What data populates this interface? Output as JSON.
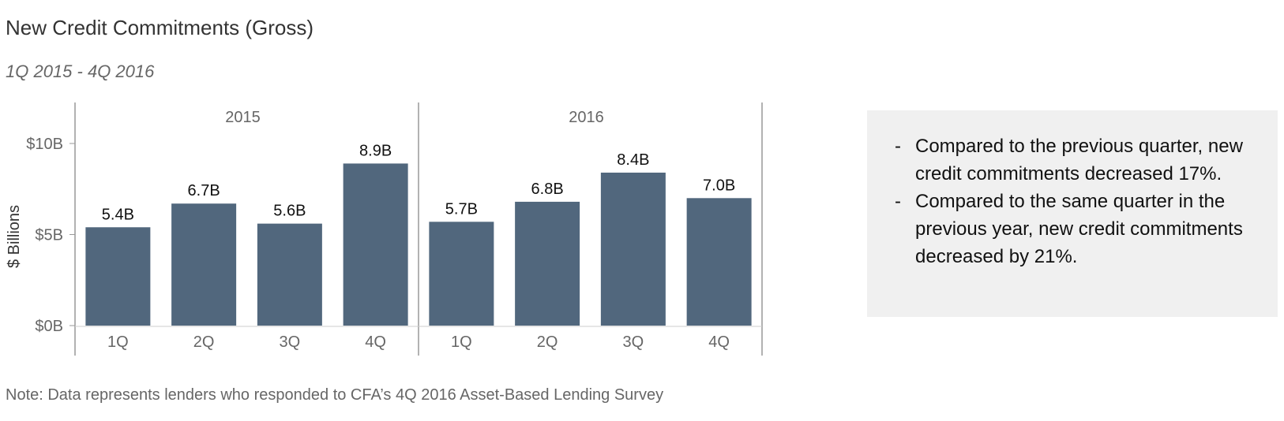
{
  "header": {
    "title": "New Credit Commitments (Gross)",
    "subtitle": "1Q 2015 - 4Q 2016"
  },
  "chart_data": {
    "type": "bar",
    "ylabel": "$ Billions",
    "ylim": [
      0,
      12
    ],
    "yticks": [
      0,
      5,
      10
    ],
    "ytick_labels": [
      "$0B",
      "$5B",
      "$10B"
    ],
    "grid": false,
    "bar_color": "#51677d",
    "groups": [
      {
        "label": "2015",
        "categories": [
          "1Q",
          "2Q",
          "3Q",
          "4Q"
        ],
        "values": [
          5.4,
          6.7,
          5.6,
          8.9
        ],
        "data_labels": [
          "5.4B",
          "6.7B",
          "5.6B",
          "8.9B"
        ]
      },
      {
        "label": "2016",
        "categories": [
          "1Q",
          "2Q",
          "3Q",
          "4Q"
        ],
        "values": [
          5.7,
          6.8,
          8.4,
          7.0
        ],
        "data_labels": [
          "5.7B",
          "6.8B",
          "8.4B",
          "7.0B"
        ]
      }
    ]
  },
  "callout": {
    "items": [
      "Compared to the previous quarter, new credit commitments decreased 17%.",
      "Compared to the same quarter in the previous year, new credit commitments decreased by 21%."
    ]
  },
  "footer": {
    "note": "Note: Data represents lenders who responded to CFA’s 4Q 2016 Asset-Based Lending Survey"
  }
}
